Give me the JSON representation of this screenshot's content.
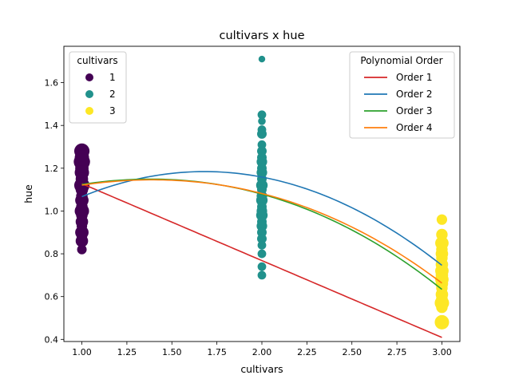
{
  "chart_data": {
    "type": "scatter",
    "title": "cultivars x hue",
    "xlabel": "cultivars",
    "ylabel": "hue",
    "xlim": [
      0.9,
      3.1
    ],
    "ylim": [
      0.39,
      1.77
    ],
    "xticks": [
      1.0,
      1.25,
      1.5,
      1.75,
      2.0,
      2.25,
      2.5,
      2.75,
      3.0
    ],
    "xtick_labels": [
      "1.00",
      "1.25",
      "1.50",
      "1.75",
      "2.00",
      "2.25",
      "2.50",
      "2.75",
      "3.00"
    ],
    "yticks": [
      0.4,
      0.6,
      0.8,
      1.0,
      1.2,
      1.4,
      1.6
    ],
    "ytick_labels": [
      "0.4",
      "0.6",
      "0.8",
      "1.0",
      "1.2",
      "1.4",
      "1.6"
    ],
    "grid": false,
    "scatter_legend": {
      "title": "cultivars",
      "location": "upper-left",
      "entries": [
        {
          "label": "1",
          "color": "#440154"
        },
        {
          "label": "2",
          "color": "#21918c"
        },
        {
          "label": "3",
          "color": "#fde725"
        }
      ]
    },
    "line_legend": {
      "title": "Polynomial Order",
      "location": "upper-right",
      "entries": [
        {
          "label": "Order 1",
          "color": "#d62728"
        },
        {
          "label": "Order 2",
          "color": "#1f77b4"
        },
        {
          "label": "Order 3",
          "color": "#2ca02c"
        },
        {
          "label": "Order 4",
          "color": "#ff7f0e"
        }
      ]
    },
    "scatter_series": [
      {
        "name": "1",
        "x": 1,
        "color": "#440154",
        "points": [
          {
            "y": 1.28,
            "size": 1.6
          },
          {
            "y": 1.25,
            "size": 1.5
          },
          {
            "y": 1.23,
            "size": 1.7
          },
          {
            "y": 1.2,
            "size": 1.4
          },
          {
            "y": 1.18,
            "size": 1.5
          },
          {
            "y": 1.15,
            "size": 1.3
          },
          {
            "y": 1.12,
            "size": 1.6
          },
          {
            "y": 1.1,
            "size": 1.3
          },
          {
            "y": 1.07,
            "size": 1.2
          },
          {
            "y": 1.05,
            "size": 1.4
          },
          {
            "y": 1.02,
            "size": 1.2
          },
          {
            "y": 1.0,
            "size": 1.5
          },
          {
            "y": 0.98,
            "size": 1.2
          },
          {
            "y": 0.95,
            "size": 1.3
          },
          {
            "y": 0.93,
            "size": 1.1
          },
          {
            "y": 0.9,
            "size": 1.4
          },
          {
            "y": 0.88,
            "size": 1.1
          },
          {
            "y": 0.86,
            "size": 1.3
          },
          {
            "y": 0.82,
            "size": 1.0
          }
        ]
      },
      {
        "name": "2",
        "x": 2,
        "color": "#21918c",
        "points": [
          {
            "y": 1.71,
            "size": 0.7
          },
          {
            "y": 1.45,
            "size": 0.9
          },
          {
            "y": 1.42,
            "size": 0.8
          },
          {
            "y": 1.38,
            "size": 0.9
          },
          {
            "y": 1.36,
            "size": 1.0
          },
          {
            "y": 1.31,
            "size": 0.9
          },
          {
            "y": 1.28,
            "size": 1.0
          },
          {
            "y": 1.25,
            "size": 1.0
          },
          {
            "y": 1.23,
            "size": 1.1
          },
          {
            "y": 1.2,
            "size": 1.0
          },
          {
            "y": 1.18,
            "size": 1.1
          },
          {
            "y": 1.15,
            "size": 1.0
          },
          {
            "y": 1.12,
            "size": 1.2
          },
          {
            "y": 1.1,
            "size": 1.0
          },
          {
            "y": 1.07,
            "size": 1.1
          },
          {
            "y": 1.05,
            "size": 1.2
          },
          {
            "y": 1.02,
            "size": 1.0
          },
          {
            "y": 1.0,
            "size": 1.1
          },
          {
            "y": 0.98,
            "size": 1.2
          },
          {
            "y": 0.95,
            "size": 1.0
          },
          {
            "y": 0.93,
            "size": 1.1
          },
          {
            "y": 0.9,
            "size": 1.0
          },
          {
            "y": 0.87,
            "size": 1.0
          },
          {
            "y": 0.84,
            "size": 0.9
          },
          {
            "y": 0.8,
            "size": 0.9
          },
          {
            "y": 0.74,
            "size": 0.9
          },
          {
            "y": 0.7,
            "size": 0.9
          }
        ]
      },
      {
        "name": "3",
        "x": 3,
        "color": "#fde725",
        "points": [
          {
            "y": 0.96,
            "size": 1.1
          },
          {
            "y": 0.89,
            "size": 1.2
          },
          {
            "y": 0.85,
            "size": 1.4
          },
          {
            "y": 0.82,
            "size": 1.2
          },
          {
            "y": 0.8,
            "size": 1.3
          },
          {
            "y": 0.78,
            "size": 1.2
          },
          {
            "y": 0.75,
            "size": 1.3
          },
          {
            "y": 0.72,
            "size": 1.4
          },
          {
            "y": 0.7,
            "size": 1.3
          },
          {
            "y": 0.68,
            "size": 1.4
          },
          {
            "y": 0.66,
            "size": 1.3
          },
          {
            "y": 0.64,
            "size": 1.2
          },
          {
            "y": 0.61,
            "size": 1.3
          },
          {
            "y": 0.59,
            "size": 1.2
          },
          {
            "y": 0.57,
            "size": 1.5
          },
          {
            "y": 0.55,
            "size": 1.2
          },
          {
            "y": 0.48,
            "size": 1.5
          }
        ]
      }
    ],
    "line_series": [
      {
        "name": "Order 1",
        "color": "#d62728",
        "coefficients": [
          1.48715,
          -0.3594
        ]
      },
      {
        "name": "Order 2",
        "color": "#1f77b4",
        "coefficients": [
          0.4715,
          0.8478,
          -0.2521
        ]
      },
      {
        "name": "Order 3",
        "color": "#2ca02c",
        "coefficients": [
          0.85,
          0.4076,
          -0.12,
          -0.0133
        ]
      },
      {
        "name": "Order 4",
        "color": "#ff7f0e",
        "coefficients": [
          0.8583,
          0.3894,
          -0.1152,
          -0.0112,
          -0.0003
        ]
      }
    ]
  }
}
